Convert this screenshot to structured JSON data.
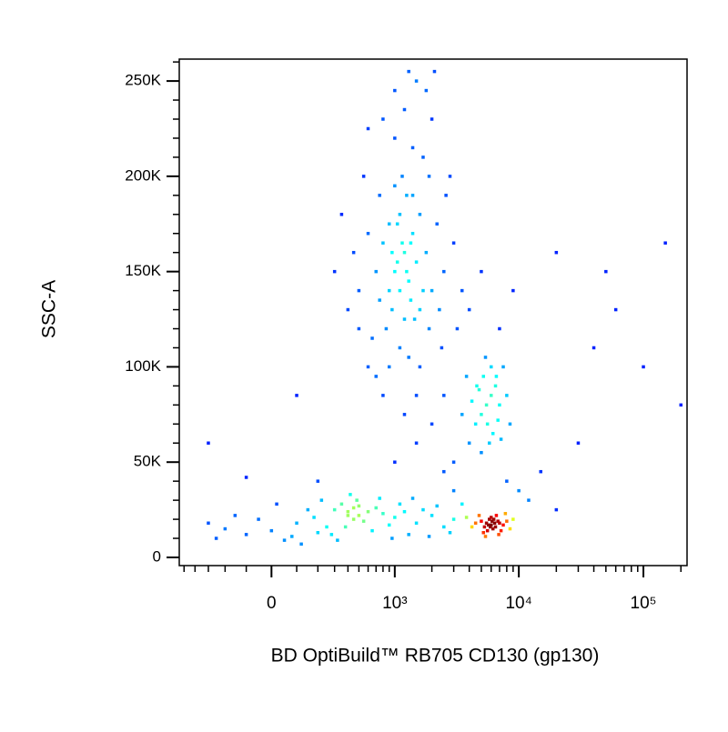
{
  "chart_data": {
    "type": "scatter",
    "xlabel": "BD OptiBuild™ RB705 CD130 (gp130)",
    "ylabel": "SSC-A",
    "xscale": "biexponential",
    "xlim": [
      -550,
      224000
    ],
    "ylim": [
      -4300,
      261500
    ],
    "xticks": [
      0,
      {
        "value": 1000,
        "label": "10³"
      },
      {
        "value": 10000,
        "label": "10⁴"
      },
      {
        "value": 100000,
        "label": "10⁵"
      }
    ],
    "xminorticks": [
      -500,
      -400,
      -300,
      -200,
      -100,
      100,
      200,
      300,
      400,
      500,
      600,
      700,
      800,
      900,
      2000,
      3000,
      4000,
      5000,
      6000,
      7000,
      8000,
      9000,
      20000,
      30000,
      40000,
      50000,
      60000,
      70000,
      80000,
      90000,
      200000
    ],
    "yticks": [
      0,
      {
        "value": 50000,
        "label": "50K"
      },
      {
        "value": 100000,
        "label": "100K"
      },
      {
        "value": 150000,
        "label": "150K"
      },
      {
        "value": 200000,
        "label": "200K"
      },
      {
        "value": 250000,
        "label": "250K"
      }
    ],
    "yminorticks": [
      10000,
      20000,
      30000,
      40000,
      60000,
      70000,
      80000,
      90000,
      110000,
      120000,
      130000,
      140000,
      160000,
      170000,
      180000,
      190000,
      210000,
      220000,
      230000,
      240000,
      260000
    ],
    "x": [
      1200,
      1000,
      1400,
      900,
      1100,
      1300,
      800,
      1500,
      1050,
      950,
      1250,
      1350,
      1150,
      700,
      1600,
      1800,
      600,
      2000,
      850,
      1700,
      1000,
      750,
      1450,
      2200,
      500,
      550,
      2500,
      650,
      1900,
      1200,
      1000,
      1500,
      800,
      2000,
      450,
      400,
      3000,
      2800,
      350,
      1100,
      1300,
      900,
      2400,
      1600,
      700,
      3500,
      3200,
      600,
      1800,
      1400,
      1150,
      1050,
      1250,
      950,
      1350,
      1100,
      1200,
      900,
      1400,
      1700,
      500,
      2600,
      300,
      1300,
      2100,
      1000,
      1600,
      750,
      1900,
      2300,
      5500,
      6000,
      5000,
      6500,
      4500,
      7000,
      5200,
      6200,
      4800,
      7500,
      5800,
      4200,
      6800,
      5400,
      8000,
      4000,
      3500,
      6600,
      5600,
      7200,
      3800,
      5000,
      6000,
      4600,
      8500,
      6000,
      5500,
      6500,
      5000,
      7000,
      6200,
      5800,
      5300,
      6800,
      7500,
      4500,
      6000,
      5600,
      6400,
      7200,
      4800,
      8000,
      5200,
      6600,
      5900,
      6100,
      5700,
      6300,
      4200,
      8500,
      9000,
      3800,
      7800,
      5400,
      6900,
      -200,
      -100,
      0,
      100,
      200,
      300,
      400,
      500,
      600,
      450,
      350,
      550,
      700,
      800,
      1000,
      1200,
      1500,
      2000,
      2500,
      3000,
      -300,
      -150,
      50,
      150,
      250,
      -50,
      80,
      180,
      280,
      380,
      480,
      650,
      900,
      1100,
      1300,
      1700,
      2200,
      2800,
      -250,
      20,
      120,
      220,
      320,
      420,
      750,
      950,
      1400,
      1900,
      3500,
      400,
      500,
      450,
      2000,
      1500,
      1000,
      3000,
      2500,
      1200,
      800,
      600,
      -100,
      -300,
      100,
      4000,
      5000,
      7000,
      9000,
      20000,
      40000,
      60000,
      150000,
      100000,
      30000,
      15000,
      12000,
      20000,
      200000,
      8000,
      10000,
      3000,
      200,
      2500,
      50000,
      1500
    ],
    "values": [
      160000,
      150000,
      170000,
      140000,
      180000,
      145000,
      165000,
      155000,
      175000,
      130000,
      190000,
      135000,
      200000,
      150000,
      180000,
      160000,
      170000,
      140000,
      120000,
      210000,
      220000,
      190000,
      125000,
      175000,
      140000,
      200000,
      150000,
      115000,
      120000,
      235000,
      245000,
      250000,
      230000,
      230000,
      160000,
      130000,
      165000,
      200000,
      180000,
      110000,
      105000,
      100000,
      110000,
      100000,
      95000,
      140000,
      120000,
      225000,
      245000,
      215000,
      165000,
      155000,
      150000,
      160000,
      165000,
      140000,
      125000,
      175000,
      190000,
      140000,
      120000,
      190000,
      150000,
      255000,
      255000,
      195000,
      130000,
      135000,
      200000,
      130000,
      80000,
      85000,
      75000,
      90000,
      70000,
      80000,
      95000,
      65000,
      88000,
      100000,
      60000,
      82000,
      72000,
      105000,
      85000,
      60000,
      75000,
      95000,
      70000,
      62000,
      95000,
      55000,
      100000,
      90000,
      70000,
      17000,
      18000,
      16000,
      19000,
      18000,
      15000,
      20000,
      16000,
      19000,
      17000,
      18000,
      21000,
      14000,
      18000,
      14000,
      22000,
      19000,
      13000,
      22000,
      16000,
      19000,
      17000,
      20000,
      16000,
      15000,
      20000,
      21000,
      23000,
      11000,
      12000,
      15000,
      12000,
      14000,
      18000,
      13000,
      25000,
      22000,
      27000,
      24000,
      20000,
      28000,
      19000,
      26000,
      23000,
      21000,
      24000,
      18000,
      22000,
      16000,
      20000,
      18000,
      22000,
      9000,
      25000,
      16000,
      20000,
      11000,
      21000,
      12000,
      16000,
      30000,
      14000,
      17000,
      28000,
      12000,
      25000,
      27000,
      13000,
      10000,
      28000,
      7000,
      30000,
      9000,
      33000,
      31000,
      10000,
      31000,
      11000,
      28000,
      24000,
      22000,
      26000,
      70000,
      60000,
      50000,
      50000,
      85000,
      75000,
      85000,
      100000,
      42000,
      60000,
      85000,
      130000,
      150000,
      120000,
      140000,
      160000,
      110000,
      130000,
      165000,
      100000,
      60000,
      45000,
      30000,
      25000,
      80000,
      40000,
      35000,
      35000,
      40000,
      45000,
      150000,
      85000
    ]
  }
}
